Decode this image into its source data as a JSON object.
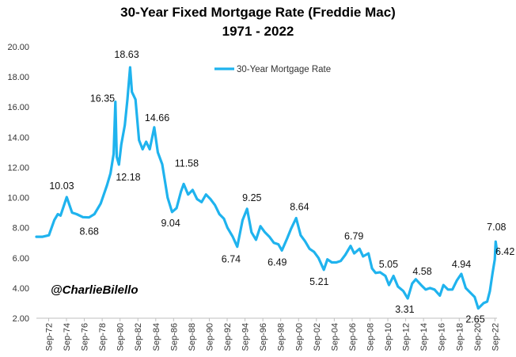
{
  "title": "30-Year Fixed Mortgage Rate (Freddie Mac)",
  "subtitle": "1971 - 2022",
  "handle": "@CharlieBilello",
  "chart_data": {
    "type": "line",
    "title": "30-Year Fixed Mortgage Rate (Freddie Mac)",
    "subtitle": "1971 - 2022",
    "xlabel": "",
    "ylabel": "",
    "ylim": [
      2.0,
      20.0
    ],
    "xlim": [
      1971.3,
      2022.9
    ],
    "grid": false,
    "legend": "top-center",
    "yticks": [
      "2.00",
      "4.00",
      "6.00",
      "8.00",
      "10.00",
      "12.00",
      "14.00",
      "16.00",
      "18.00",
      "20.00"
    ],
    "xticks": [
      "Sep-72",
      "Sep-74",
      "Sep-76",
      "Sep-78",
      "Sep-80",
      "Sep-82",
      "Sep-84",
      "Sep-86",
      "Sep-88",
      "Sep-90",
      "Sep-92",
      "Sep-94",
      "Sep-96",
      "Sep-98",
      "Sep-00",
      "Sep-02",
      "Sep-04",
      "Sep-06",
      "Sep-08",
      "Sep-10",
      "Sep-12",
      "Sep-14",
      "Sep-16",
      "Sep-18",
      "Sep-20",
      "Sep-22"
    ],
    "series": [
      {
        "name": "30-Year Mortgage Rate",
        "color": "#1fb3ee",
        "x": [
          1971.3,
          1972.0,
          1972.7,
          1973.3,
          1973.7,
          1974.0,
          1974.7,
          1975.3,
          1975.8,
          1976.5,
          1977.2,
          1977.8,
          1978.5,
          1979.2,
          1979.6,
          1979.95,
          1980.15,
          1980.3,
          1980.55,
          1980.8,
          1981.2,
          1981.5,
          1981.8,
          1982.0,
          1982.4,
          1982.8,
          1983.2,
          1983.6,
          1984.0,
          1984.5,
          1984.9,
          1985.4,
          1986.0,
          1986.5,
          1987.0,
          1987.5,
          1987.8,
          1988.3,
          1988.8,
          1989.3,
          1989.8,
          1990.3,
          1990.8,
          1991.3,
          1991.8,
          1992.3,
          1992.7,
          1993.3,
          1993.8,
          1994.4,
          1994.9,
          1995.4,
          1995.9,
          1996.4,
          1996.9,
          1997.4,
          1997.9,
          1998.4,
          1998.8,
          1999.4,
          1999.8,
          2000.4,
          2000.9,
          2001.4,
          2001.9,
          2002.4,
          2002.9,
          2003.5,
          2003.9,
          2004.4,
          2004.9,
          2005.4,
          2005.9,
          2006.5,
          2006.9,
          2007.5,
          2007.9,
          2008.5,
          2008.9,
          2009.3,
          2009.8,
          2010.4,
          2010.8,
          2011.3,
          2011.8,
          2012.4,
          2012.9,
          2013.4,
          2013.8,
          2014.4,
          2014.9,
          2015.4,
          2015.9,
          2016.5,
          2016.9,
          2017.4,
          2017.9,
          2018.4,
          2018.9,
          2019.4,
          2019.9,
          2020.4,
          2020.8,
          2021.4,
          2021.8,
          2022.1,
          2022.4,
          2022.65,
          2022.75,
          2022.9
        ],
        "values": [
          7.4,
          7.4,
          7.5,
          8.5,
          8.9,
          8.8,
          10.03,
          9.0,
          8.9,
          8.7,
          8.68,
          8.9,
          9.6,
          10.8,
          11.6,
          12.9,
          16.35,
          12.7,
          12.18,
          13.5,
          14.8,
          16.5,
          18.63,
          17.0,
          16.5,
          13.8,
          13.2,
          13.7,
          13.2,
          14.66,
          13.0,
          12.2,
          10.0,
          9.04,
          9.3,
          10.4,
          10.9,
          10.2,
          10.5,
          9.9,
          9.7,
          10.2,
          9.9,
          9.5,
          8.9,
          8.6,
          8.0,
          7.4,
          6.74,
          8.5,
          9.25,
          7.7,
          7.2,
          8.1,
          7.7,
          7.4,
          7.0,
          6.9,
          6.49,
          7.3,
          7.9,
          8.64,
          7.5,
          7.1,
          6.6,
          6.4,
          6.0,
          5.21,
          5.9,
          5.7,
          5.7,
          5.8,
          6.2,
          6.79,
          6.3,
          6.6,
          6.1,
          6.3,
          5.3,
          5.0,
          5.05,
          4.8,
          4.2,
          4.8,
          4.1,
          3.8,
          3.31,
          4.3,
          4.58,
          4.2,
          3.9,
          4.0,
          3.9,
          3.5,
          4.2,
          3.9,
          3.9,
          4.5,
          4.94,
          4.0,
          3.7,
          3.4,
          2.65,
          3.0,
          3.1,
          3.8,
          5.0,
          5.9,
          7.08,
          6.42
        ]
      }
    ],
    "annotations": [
      "10.03",
      "8.68",
      "16.35",
      "12.18",
      "18.63",
      "14.66",
      "11.58",
      "9.04",
      "6.74",
      "9.25",
      "6.49",
      "8.64",
      "5.21",
      "6.79",
      "5.05",
      "3.31",
      "4.58",
      "4.94",
      "2.65",
      "7.08",
      "6.42"
    ]
  }
}
